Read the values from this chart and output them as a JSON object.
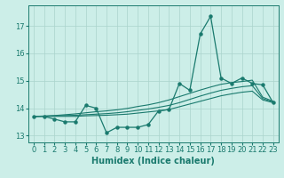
{
  "xlabel": "Humidex (Indice chaleur)",
  "bg_color": "#cceee8",
  "line_color": "#1a7a6e",
  "grid_color": "#aad4cc",
  "xlim": [
    -0.5,
    23.5
  ],
  "ylim": [
    12.75,
    17.75
  ],
  "yticks": [
    13,
    14,
    15,
    16,
    17
  ],
  "xticks": [
    0,
    1,
    2,
    3,
    4,
    5,
    6,
    7,
    8,
    9,
    10,
    11,
    12,
    13,
    14,
    15,
    16,
    17,
    18,
    19,
    20,
    21,
    22,
    23
  ],
  "main_line_x": [
    0,
    1,
    2,
    3,
    4,
    5,
    6,
    7,
    8,
    9,
    10,
    11,
    12,
    13,
    14,
    15,
    16,
    17,
    18,
    19,
    20,
    21,
    22,
    23
  ],
  "main_line_y": [
    13.7,
    13.7,
    13.6,
    13.5,
    13.5,
    14.1,
    14.0,
    13.1,
    13.3,
    13.3,
    13.3,
    13.4,
    13.9,
    13.95,
    14.9,
    14.65,
    16.7,
    17.35,
    15.1,
    14.9,
    15.1,
    14.9,
    14.85,
    14.2
  ],
  "trend1_x": [
    0,
    1,
    2,
    3,
    4,
    5,
    6,
    7,
    8,
    9,
    10,
    11,
    12,
    13,
    14,
    15,
    16,
    17,
    18,
    19,
    20,
    21,
    22,
    23
  ],
  "trend1_y": [
    13.7,
    13.7,
    13.7,
    13.7,
    13.7,
    13.72,
    13.73,
    13.74,
    13.76,
    13.78,
    13.82,
    13.86,
    13.9,
    13.95,
    14.05,
    14.15,
    14.25,
    14.35,
    14.45,
    14.52,
    14.58,
    14.62,
    14.3,
    14.2
  ],
  "trend2_x": [
    0,
    1,
    2,
    3,
    4,
    5,
    6,
    7,
    8,
    9,
    10,
    11,
    12,
    13,
    14,
    15,
    16,
    17,
    18,
    19,
    20,
    21,
    22,
    23
  ],
  "trend2_y": [
    13.7,
    13.71,
    13.72,
    13.73,
    13.74,
    13.76,
    13.78,
    13.8,
    13.83,
    13.87,
    13.92,
    13.97,
    14.03,
    14.1,
    14.2,
    14.32,
    14.44,
    14.55,
    14.65,
    14.72,
    14.78,
    14.82,
    14.35,
    14.22
  ],
  "trend3_x": [
    0,
    1,
    2,
    3,
    4,
    5,
    6,
    7,
    8,
    9,
    10,
    11,
    12,
    13,
    14,
    15,
    16,
    17,
    18,
    19,
    20,
    21,
    22,
    23
  ],
  "trend3_y": [
    13.7,
    13.71,
    13.73,
    13.76,
    13.79,
    13.83,
    13.87,
    13.9,
    13.94,
    13.99,
    14.06,
    14.12,
    14.2,
    14.3,
    14.42,
    14.54,
    14.66,
    14.77,
    14.87,
    14.93,
    14.97,
    15.02,
    14.4,
    14.25
  ],
  "xlabel_fontsize": 7,
  "tick_fontsize": 6
}
